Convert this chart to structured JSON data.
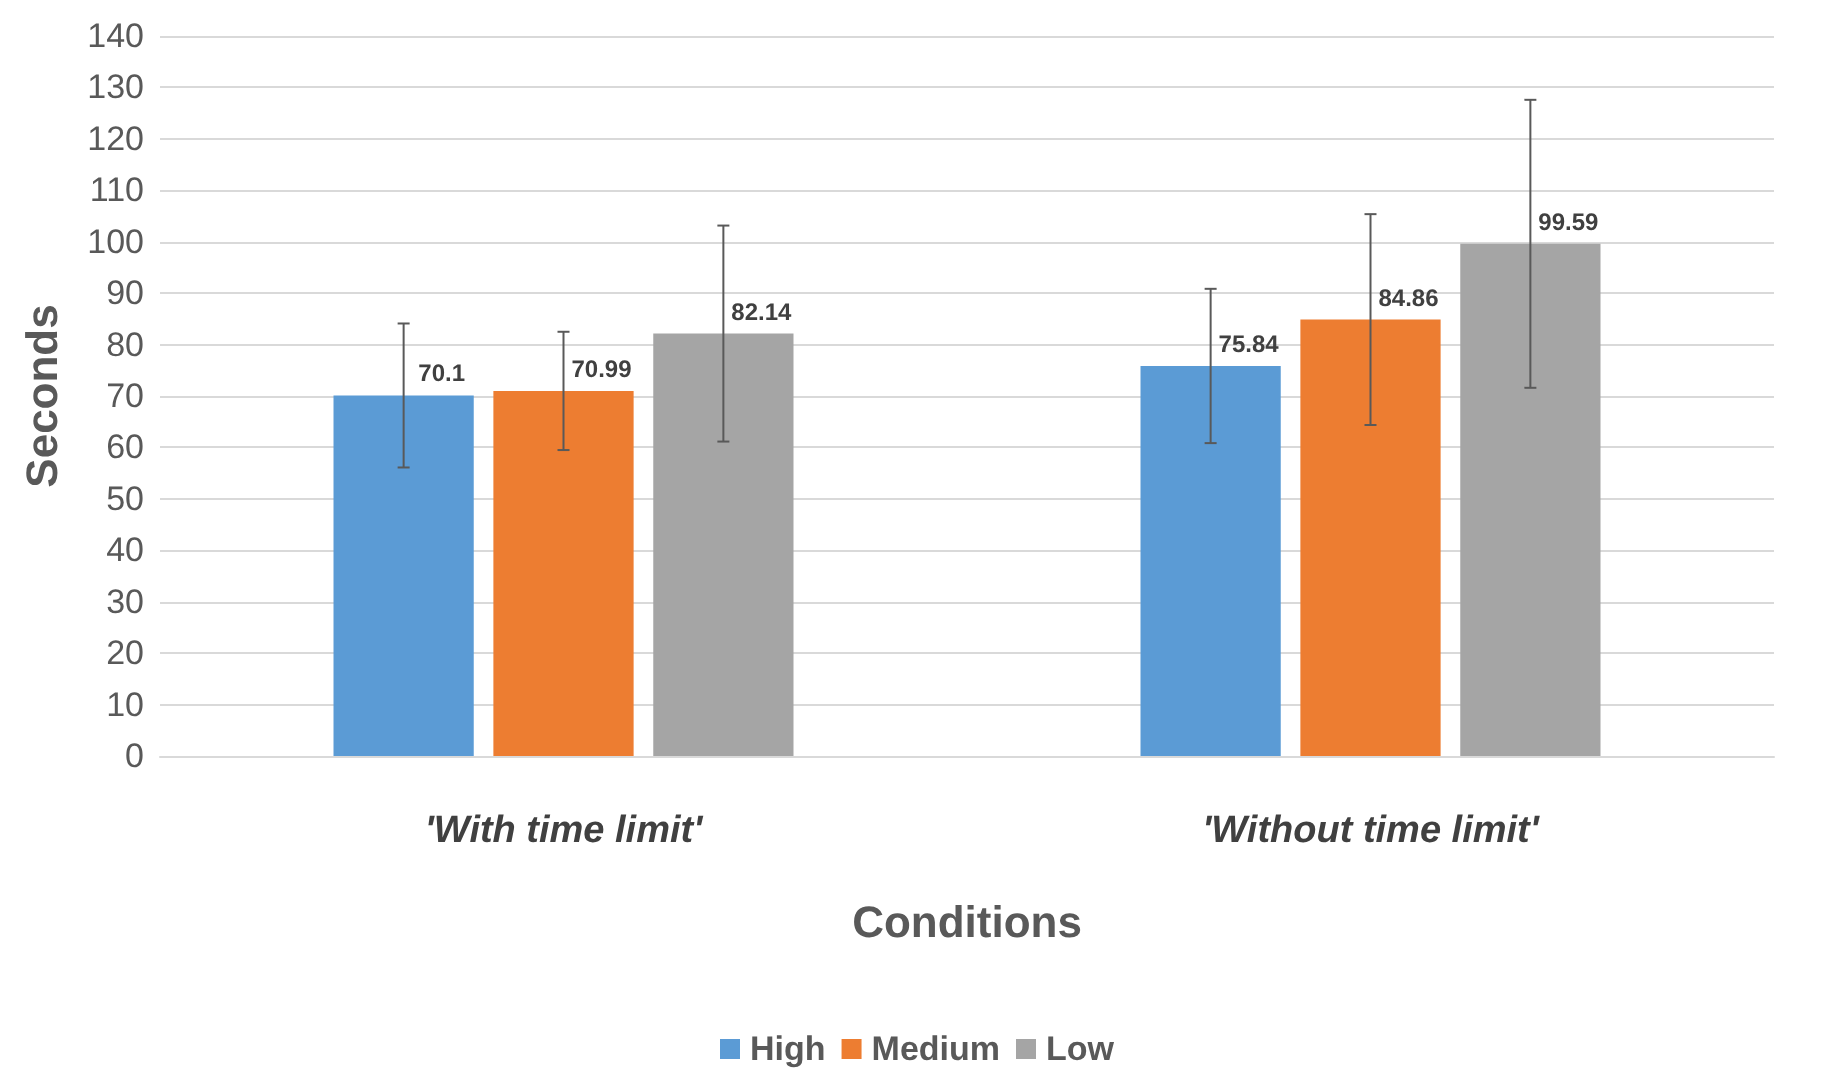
{
  "chart_data": {
    "type": "bar",
    "xlabel": "Conditions",
    "ylabel": "Seconds",
    "categories": [
      "'With time limit'",
      "'Without time limit'"
    ],
    "series": [
      {
        "name": "High",
        "color": "#5b9bd5",
        "values": [
          70.1,
          75.84
        ],
        "errors": [
          14,
          15
        ]
      },
      {
        "name": "Medium",
        "color": "#ed7d31",
        "values": [
          70.99,
          84.86
        ],
        "errors": [
          11.5,
          20.5
        ]
      },
      {
        "name": "Low",
        "color": "#a5a5a5",
        "values": [
          82.14,
          99.59
        ],
        "errors": [
          21,
          28
        ]
      }
    ],
    "ylim": [
      0,
      140
    ],
    "yticks": [
      0,
      10,
      20,
      30,
      40,
      50,
      60,
      70,
      80,
      90,
      100,
      110,
      120,
      130,
      140
    ],
    "grid": "y",
    "legend": "bottom",
    "data_labels": true
  }
}
